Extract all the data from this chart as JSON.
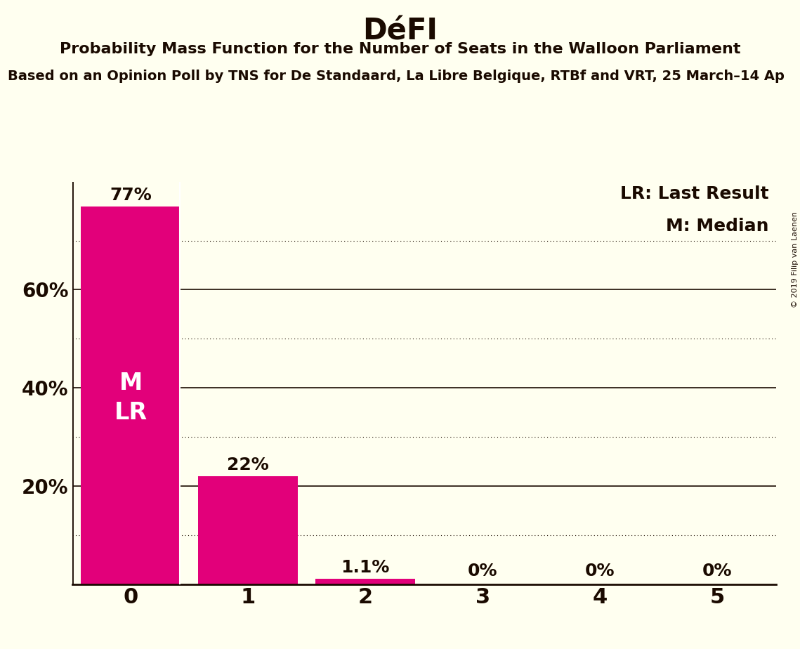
{
  "title": "DéFI",
  "subtitle1": "Probability Mass Function for the Number of Seats in the Walloon Parliament",
  "subtitle2": "Based on an Opinion Poll by TNS for De Standaard, La Libre Belgique, RTBf and VRT, 25 March–14 Ap",
  "categories": [
    0,
    1,
    2,
    3,
    4,
    5
  ],
  "values": [
    0.77,
    0.22,
    0.011,
    0.0,
    0.0,
    0.0
  ],
  "labels": [
    "77%",
    "22%",
    "1.1%",
    "0%",
    "0%",
    "0%"
  ],
  "bar_color": "#E2007A",
  "background_color": "#FFFFF0",
  "text_color": "#1A0A00",
  "white_text": "#FFFFFF",
  "legend_lr": "LR: Last Result",
  "legend_m": "M: Median",
  "yticks": [
    0.2,
    0.4,
    0.6
  ],
  "ytick_labels": [
    "20%",
    "40%",
    "60%"
  ],
  "dotted_lines": [
    0.1,
    0.3,
    0.5,
    0.7
  ],
  "ylim": [
    0,
    0.82
  ],
  "copyright": "© 2019 Filip van Laenen",
  "bar_width": 0.85
}
